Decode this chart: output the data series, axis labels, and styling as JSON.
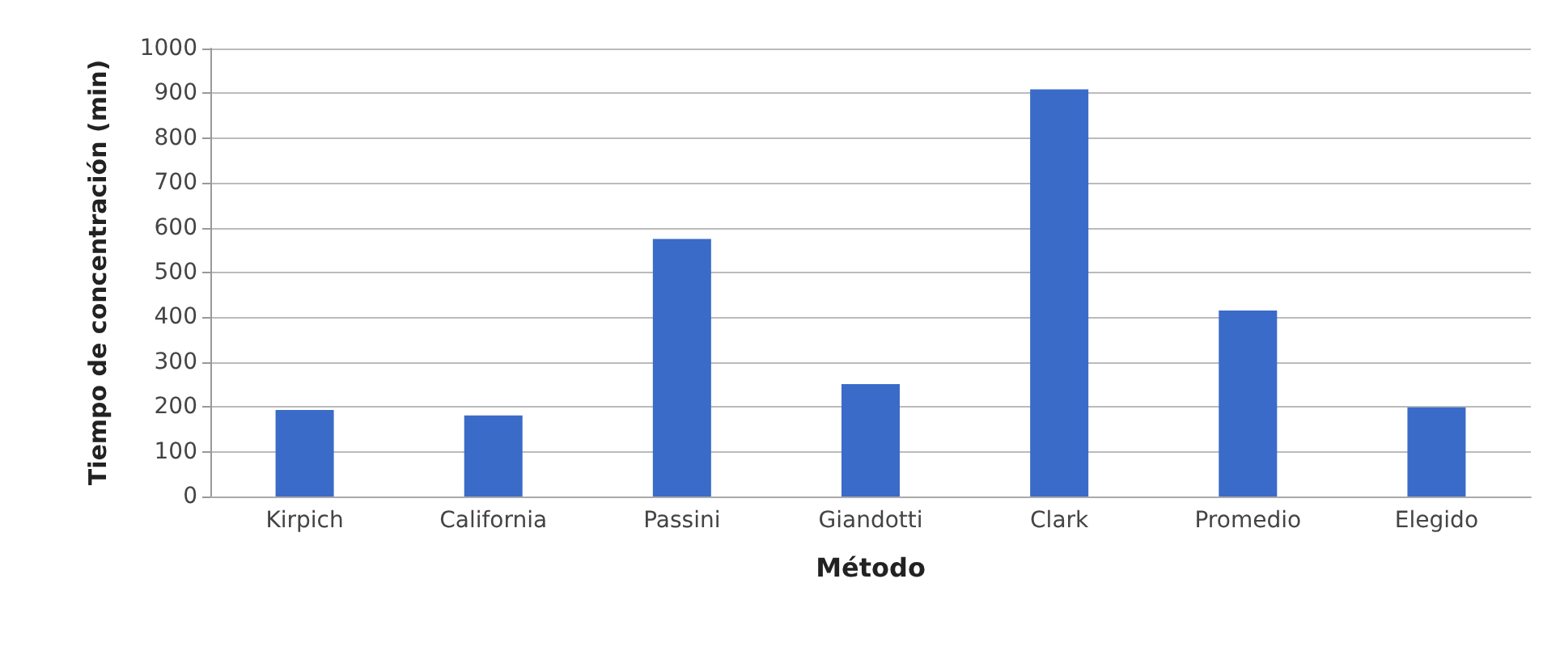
{
  "chart_data": {
    "type": "bar",
    "xlabel": "Método",
    "ylabel": "Tiempo de concentración (min)",
    "categories": [
      "Kirpich",
      "California",
      "Passini",
      "Giandotti",
      "Clark",
      "Promedio",
      "Elegido"
    ],
    "values": [
      193,
      181,
      575,
      251,
      909,
      415,
      199
    ],
    "color": "#3a6bc8",
    "ylim": [
      0,
      1000
    ],
    "yticks": [
      0,
      100,
      200,
      300,
      400,
      500,
      600,
      700,
      800,
      900,
      1000
    ],
    "grid": "y"
  }
}
